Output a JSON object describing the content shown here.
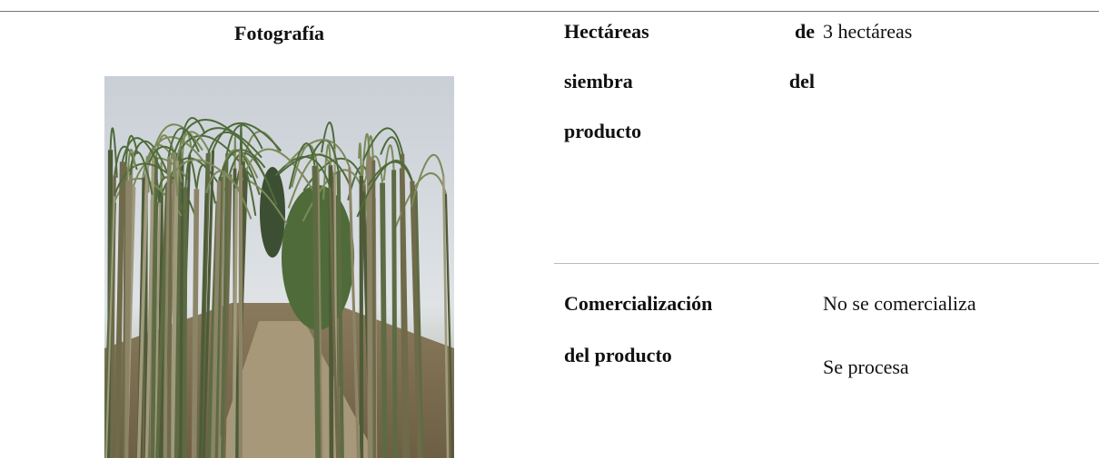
{
  "header": {
    "title": "Fotografía"
  },
  "rows": [
    {
      "label_lines": [
        "Hectáreas de",
        "siembra del",
        "producto"
      ],
      "values": [
        "3 hectáreas"
      ]
    },
    {
      "label_lines": [
        "Comercialización",
        "del producto"
      ],
      "values": [
        "No se comercializa",
        "Se procesa"
      ]
    }
  ]
}
